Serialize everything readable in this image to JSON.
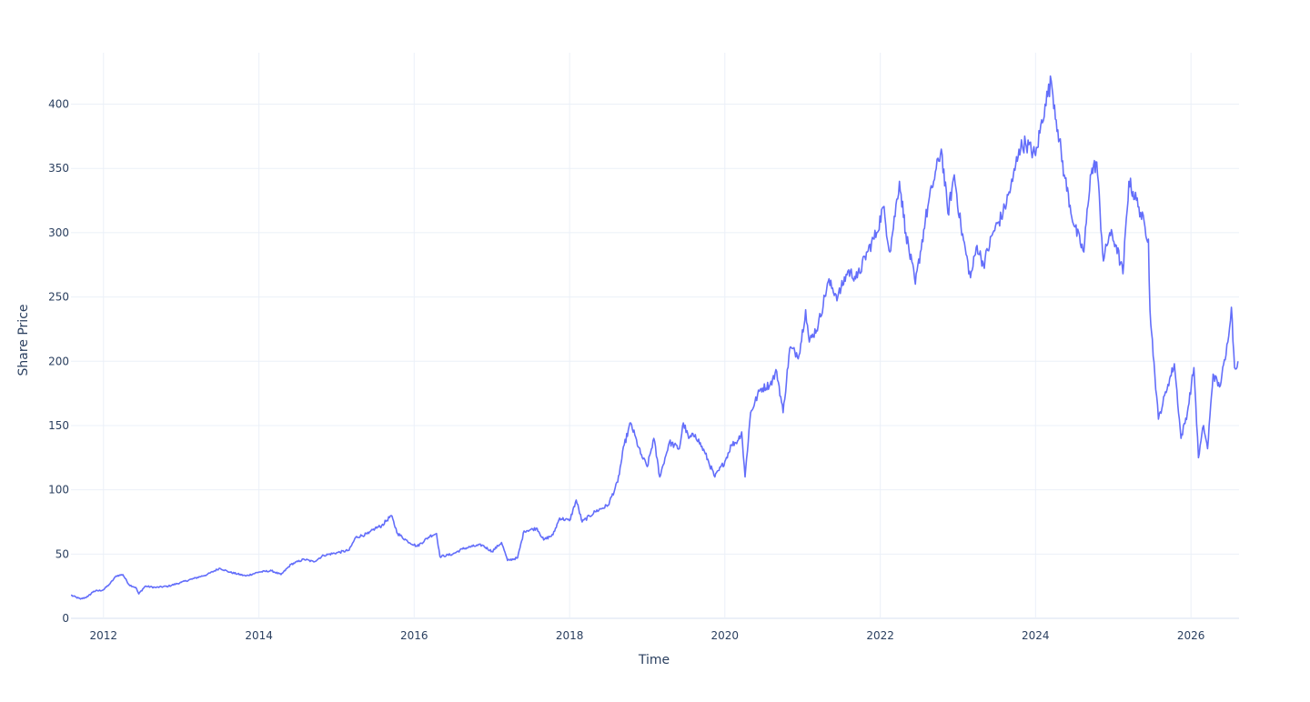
{
  "chart_data": {
    "type": "line",
    "title": "",
    "xlabel": "Time",
    "ylabel": "Share Price",
    "x_range": [
      "2011-08-01",
      "2026-08-15"
    ],
    "ylim": [
      0,
      440
    ],
    "x_ticks": [
      "2012",
      "2014",
      "2016",
      "2018",
      "2020",
      "2022",
      "2024",
      "2026"
    ],
    "y_ticks": [
      0,
      50,
      100,
      150,
      200,
      250,
      300,
      350,
      400
    ],
    "grid": true,
    "legend": "none",
    "series": [
      {
        "color": "#636efa",
        "points": [
          [
            "2011-08-01",
            18
          ],
          [
            "2011-09-15",
            15
          ],
          [
            "2011-10-20",
            17
          ],
          [
            "2011-11-15",
            21
          ],
          [
            "2011-12-30",
            22
          ],
          [
            "2012-02-01",
            27
          ],
          [
            "2012-03-01",
            33
          ],
          [
            "2012-04-01",
            34
          ],
          [
            "2012-05-01",
            26
          ],
          [
            "2012-06-01",
            24
          ],
          [
            "2012-06-15",
            19
          ],
          [
            "2012-07-15",
            25
          ],
          [
            "2012-09-01",
            24
          ],
          [
            "2012-11-01",
            25
          ],
          [
            "2013-01-01",
            28
          ],
          [
            "2013-03-01",
            31
          ],
          [
            "2013-05-01",
            34
          ],
          [
            "2013-07-01",
            39
          ],
          [
            "2013-08-15",
            36
          ],
          [
            "2013-11-01",
            33
          ],
          [
            "2014-01-01",
            36
          ],
          [
            "2014-03-01",
            37
          ],
          [
            "2014-04-15",
            34
          ],
          [
            "2014-06-01",
            42
          ],
          [
            "2014-08-01",
            46
          ],
          [
            "2014-09-15",
            44
          ],
          [
            "2014-11-01",
            49
          ],
          [
            "2015-01-01",
            51
          ],
          [
            "2015-03-01",
            53
          ],
          [
            "2015-04-01",
            63
          ],
          [
            "2015-06-01",
            66
          ],
          [
            "2015-07-01",
            70
          ],
          [
            "2015-08-01",
            72
          ],
          [
            "2015-09-15",
            80
          ],
          [
            "2015-10-15",
            66
          ],
          [
            "2015-12-01",
            60
          ],
          [
            "2016-01-15",
            56
          ],
          [
            "2016-03-15",
            64
          ],
          [
            "2016-04-15",
            66
          ],
          [
            "2016-05-01",
            48
          ],
          [
            "2016-07-01",
            50
          ],
          [
            "2016-08-15",
            54
          ],
          [
            "2016-10-01",
            56
          ],
          [
            "2016-11-15",
            57
          ],
          [
            "2017-01-01",
            52
          ],
          [
            "2017-02-15",
            59
          ],
          [
            "2017-03-15",
            45
          ],
          [
            "2017-05-01",
            47
          ],
          [
            "2017-06-01",
            68
          ],
          [
            "2017-08-01",
            70
          ],
          [
            "2017-09-01",
            61
          ],
          [
            "2017-10-15",
            65
          ],
          [
            "2017-11-15",
            78
          ],
          [
            "2018-01-01",
            76
          ],
          [
            "2018-02-01",
            92
          ],
          [
            "2018-03-01",
            75
          ],
          [
            "2018-05-01",
            83
          ],
          [
            "2018-07-01",
            88
          ],
          [
            "2018-08-15",
            106
          ],
          [
            "2018-09-15",
            135
          ],
          [
            "2018-10-15",
            152
          ],
          [
            "2018-12-01",
            128
          ],
          [
            "2019-01-01",
            118
          ],
          [
            "2019-02-01",
            140
          ],
          [
            "2019-03-01",
            110
          ],
          [
            "2019-04-15",
            137
          ],
          [
            "2019-06-01",
            132
          ],
          [
            "2019-06-20",
            152
          ],
          [
            "2019-07-15",
            140
          ],
          [
            "2019-08-15",
            143
          ],
          [
            "2019-10-01",
            128
          ],
          [
            "2019-11-15",
            110
          ],
          [
            "2020-01-01",
            122
          ],
          [
            "2020-02-01",
            135
          ],
          [
            "2020-03-01",
            138
          ],
          [
            "2020-03-20",
            145
          ],
          [
            "2020-04-05",
            110
          ],
          [
            "2020-05-01",
            160
          ],
          [
            "2020-06-15",
            178
          ],
          [
            "2020-08-01",
            182
          ],
          [
            "2020-09-01",
            192
          ],
          [
            "2020-10-01",
            160
          ],
          [
            "2020-11-01",
            210
          ],
          [
            "2020-12-15",
            205
          ],
          [
            "2021-01-15",
            240
          ],
          [
            "2021-02-01",
            215
          ],
          [
            "2021-03-15",
            228
          ],
          [
            "2021-05-01",
            262
          ],
          [
            "2021-06-15",
            250
          ],
          [
            "2021-08-01",
            270
          ],
          [
            "2021-09-15",
            265
          ],
          [
            "2021-11-01",
            285
          ],
          [
            "2021-12-15",
            300
          ],
          [
            "2022-01-15",
            320
          ],
          [
            "2022-02-15",
            285
          ],
          [
            "2022-04-01",
            340
          ],
          [
            "2022-05-01",
            300
          ],
          [
            "2022-06-15",
            260
          ],
          [
            "2022-08-01",
            310
          ],
          [
            "2022-09-01",
            335
          ],
          [
            "2022-10-15",
            365
          ],
          [
            "2022-11-15",
            315
          ],
          [
            "2022-12-15",
            345
          ],
          [
            "2023-01-15",
            305
          ],
          [
            "2023-03-01",
            265
          ],
          [
            "2023-04-01",
            290
          ],
          [
            "2023-05-01",
            275
          ],
          [
            "2023-06-15",
            300
          ],
          [
            "2023-08-01",
            315
          ],
          [
            "2023-09-15",
            340
          ],
          [
            "2023-10-15",
            365
          ],
          [
            "2023-11-15",
            370
          ],
          [
            "2024-01-01",
            360
          ],
          [
            "2024-02-15",
            400
          ],
          [
            "2024-03-15",
            418
          ],
          [
            "2024-04-15",
            380
          ],
          [
            "2024-05-15",
            345
          ],
          [
            "2024-07-01",
            305
          ],
          [
            "2024-08-15",
            285
          ],
          [
            "2024-09-15",
            345
          ],
          [
            "2024-10-15",
            355
          ],
          [
            "2024-11-15",
            278
          ],
          [
            "2024-12-15",
            300
          ],
          [
            "2025-01-15",
            290
          ],
          [
            "2025-02-15",
            268
          ],
          [
            "2025-03-15",
            340
          ],
          [
            "2025-05-01",
            320
          ],
          [
            "2025-06-15",
            295
          ],
          [
            "2025-06-22",
            240
          ],
          [
            "2025-07-15",
            190
          ],
          [
            "2025-08-01",
            155
          ],
          [
            "2025-09-15",
            182
          ],
          [
            "2025-10-15",
            198
          ],
          [
            "2025-11-15",
            140
          ],
          [
            "2025-12-15",
            160
          ],
          [
            "2026-01-15",
            195
          ],
          [
            "2026-02-05",
            125
          ],
          [
            "2026-03-01",
            150
          ],
          [
            "2026-03-20",
            132
          ],
          [
            "2026-04-15",
            190
          ],
          [
            "2026-05-15",
            180
          ],
          [
            "2026-06-15",
            205
          ],
          [
            "2026-07-10",
            242
          ],
          [
            "2026-07-25",
            195
          ],
          [
            "2026-08-10",
            200
          ]
        ]
      }
    ]
  }
}
